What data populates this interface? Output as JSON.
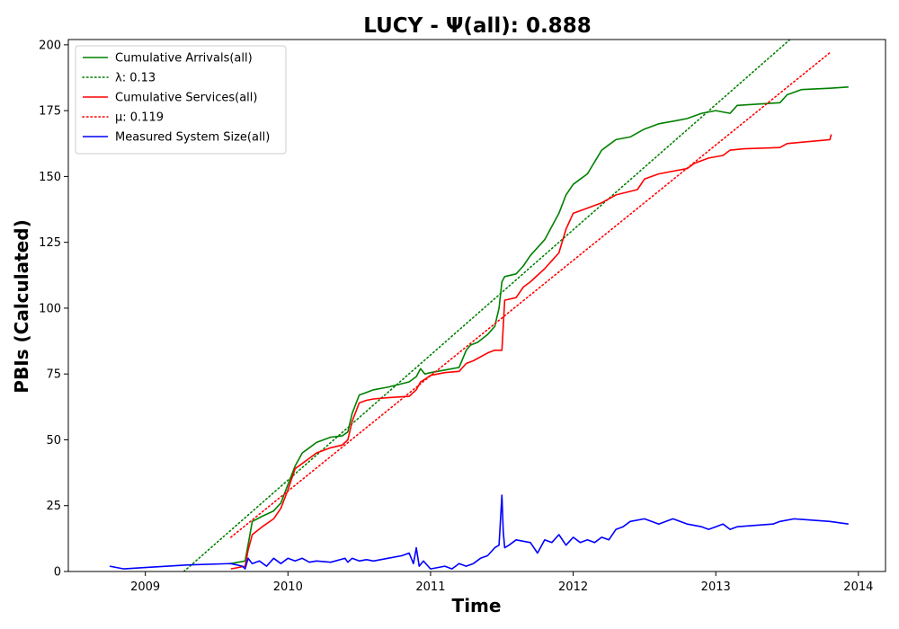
{
  "chart_data": {
    "type": "line",
    "title": "LUCY -  Ψ(all): 0.888",
    "xlabel": "Time",
    "ylabel": "PBIs (Calculated)",
    "xlim": [
      2008.46,
      2014.19
    ],
    "ylim": [
      0,
      202
    ],
    "x_ticks": [
      2009,
      2010,
      2011,
      2012,
      2013,
      2014
    ],
    "x_tick_labels": [
      "2009",
      "2010",
      "2011",
      "2012",
      "2013",
      "2014"
    ],
    "y_ticks": [
      0,
      25,
      50,
      75,
      100,
      125,
      150,
      175,
      200
    ],
    "y_tick_labels": [
      "0",
      "25",
      "50",
      "75",
      "100",
      "125",
      "150",
      "175",
      "200"
    ],
    "grid": false,
    "legend_position": "upper-left",
    "series": [
      {
        "name": "Cumulative Arrivals(all)",
        "color": "#008000",
        "style": "solid",
        "x": [
          2009.6,
          2009.7,
          2009.72,
          2009.75,
          2009.82,
          2009.9,
          2009.95,
          2010.0,
          2010.05,
          2010.1,
          2010.15,
          2010.2,
          2010.3,
          2010.38,
          2010.42,
          2010.45,
          2010.5,
          2010.55,
          2010.6,
          2010.7,
          2010.85,
          2010.9,
          2010.93,
          2010.96,
          2011.0,
          2011.1,
          2011.2,
          2011.25,
          2011.28,
          2011.33,
          2011.4,
          2011.45,
          2011.48,
          2011.5,
          2011.52,
          2011.6,
          2011.65,
          2011.7,
          2011.8,
          2011.9,
          2011.95,
          2012.0,
          2012.05,
          2012.1,
          2012.2,
          2012.25,
          2012.3,
          2012.4,
          2012.5,
          2012.55,
          2012.6,
          2012.65,
          2012.7,
          2012.8,
          2012.9,
          2013.0,
          2013.1,
          2013.15,
          2013.3,
          2013.45,
          2013.5,
          2013.55,
          2013.6,
          2013.8,
          2013.93
        ],
        "y": [
          3,
          4,
          10,
          19,
          21,
          23,
          26,
          33,
          40,
          45,
          47,
          49,
          51,
          51.5,
          53,
          60,
          67,
          68,
          69,
          70,
          72,
          74,
          77,
          75,
          75.5,
          76.5,
          77.5,
          84,
          86,
          87,
          90,
          93,
          100,
          110,
          112,
          113,
          116,
          120,
          126,
          136,
          143,
          147,
          149,
          151,
          160,
          162,
          164,
          165,
          168,
          169,
          170,
          170.5,
          171,
          172,
          174,
          175,
          174,
          177,
          177.5,
          178,
          181,
          182,
          183,
          183.5,
          184
        ]
      },
      {
        "name": "λ: 0.13",
        "color": "#008000",
        "style": "dotted",
        "x": [
          2009.27,
          2013.52
        ],
        "y": [
          0,
          202
        ]
      },
      {
        "name": "Cumulative Services(all)",
        "color": "#ff0000",
        "style": "solid",
        "x": [
          2009.6,
          2009.7,
          2009.72,
          2009.75,
          2009.82,
          2009.9,
          2009.95,
          2010.0,
          2010.05,
          2010.1,
          2010.15,
          2010.2,
          2010.3,
          2010.38,
          2010.42,
          2010.45,
          2010.5,
          2010.55,
          2010.6,
          2010.7,
          2010.85,
          2010.9,
          2010.93,
          2010.96,
          2011.0,
          2011.1,
          2011.2,
          2011.25,
          2011.3,
          2011.4,
          2011.45,
          2011.5,
          2011.52,
          2011.6,
          2011.65,
          2011.7,
          2011.8,
          2011.85,
          2011.9,
          2011.95,
          2012.0,
          2012.05,
          2012.1,
          2012.2,
          2012.3,
          2012.45,
          2012.5,
          2012.6,
          2012.7,
          2012.8,
          2012.85,
          2012.95,
          2013.05,
          2013.1,
          2013.2,
          2013.45,
          2013.5,
          2013.6,
          2013.8,
          2013.81
        ],
        "y": [
          1,
          2,
          8,
          14,
          17,
          20,
          24,
          31,
          39,
          41,
          43,
          45,
          47,
          48,
          50,
          57,
          64,
          65,
          65.5,
          66,
          66.5,
          69,
          72,
          73,
          74.5,
          75.5,
          76,
          79,
          80,
          83,
          84,
          84,
          103,
          104,
          108,
          110,
          115,
          118,
          121,
          130,
          136,
          137,
          138,
          140,
          143,
          145,
          149,
          151,
          152,
          153,
          155,
          157,
          158,
          160,
          160.5,
          161,
          162.5,
          163,
          164,
          166
        ]
      },
      {
        "name": "μ: 0.119",
        "color": "#ff0000",
        "style": "dotted",
        "x": [
          2009.6,
          2013.8
        ],
        "y": [
          13,
          197
        ]
      },
      {
        "name": "Measured System Size(all)",
        "color": "#0000ff",
        "style": "solid",
        "x": [
          2008.75,
          2008.8,
          2008.85,
          2009.0,
          2009.3,
          2009.6,
          2009.68,
          2009.7,
          2009.72,
          2009.75,
          2009.8,
          2009.85,
          2009.9,
          2009.95,
          2010.0,
          2010.05,
          2010.1,
          2010.15,
          2010.2,
          2010.3,
          2010.4,
          2010.42,
          2010.45,
          2010.5,
          2010.55,
          2010.6,
          2010.7,
          2010.8,
          2010.85,
          2010.88,
          2010.9,
          2010.92,
          2010.95,
          2011.0,
          2011.05,
          2011.1,
          2011.15,
          2011.2,
          2011.25,
          2011.3,
          2011.35,
          2011.4,
          2011.45,
          2011.48,
          2011.5,
          2011.51,
          2011.52,
          2011.55,
          2011.6,
          2011.7,
          2011.75,
          2011.8,
          2011.85,
          2011.9,
          2011.95,
          2012.0,
          2012.05,
          2012.1,
          2012.15,
          2012.2,
          2012.25,
          2012.3,
          2012.35,
          2012.4,
          2012.5,
          2012.6,
          2012.65,
          2012.7,
          2012.8,
          2012.9,
          2012.95,
          2013.0,
          2013.05,
          2013.1,
          2013.15,
          2013.4,
          2013.45,
          2013.55,
          2013.8,
          2013.93
        ],
        "y": [
          2,
          1.5,
          1,
          1.5,
          2.5,
          3,
          2,
          1,
          5,
          3,
          4,
          2,
          5,
          3,
          5,
          4,
          5,
          3.5,
          4,
          3.5,
          5,
          3.5,
          5,
          4,
          4.5,
          4,
          5,
          6,
          7,
          3,
          9,
          2,
          4,
          1,
          1.5,
          2,
          1,
          3,
          2,
          3,
          5,
          6,
          9,
          10,
          29,
          15,
          9,
          10,
          12,
          11,
          7,
          12,
          11,
          14,
          10,
          13,
          11,
          12,
          11,
          13,
          12,
          16,
          17,
          19,
          20,
          18,
          19,
          20,
          18,
          17,
          16,
          17,
          18,
          16,
          17,
          18,
          19,
          20,
          19,
          18
        ]
      }
    ]
  }
}
